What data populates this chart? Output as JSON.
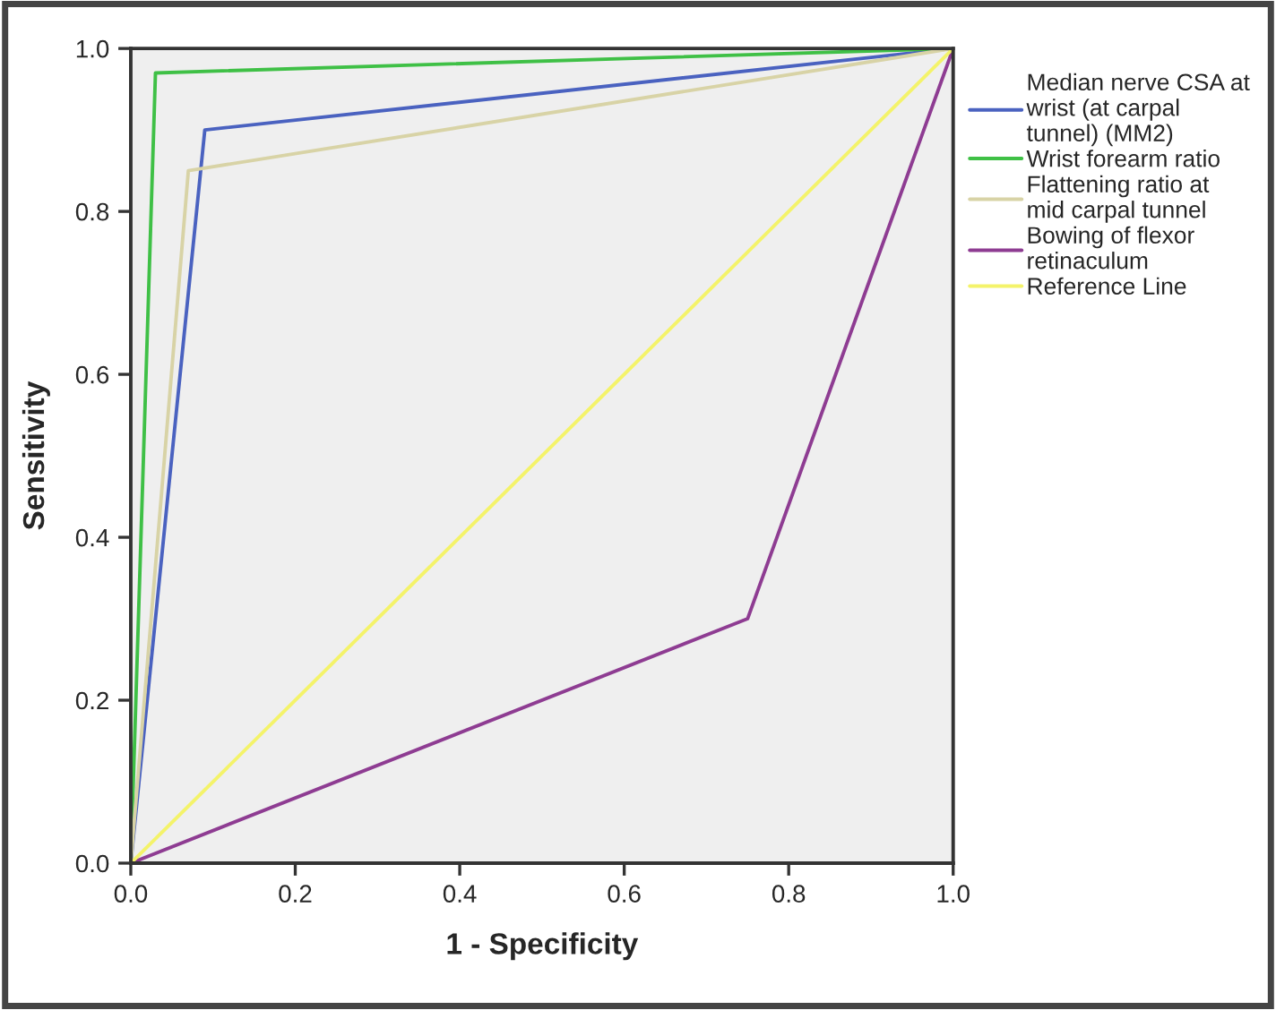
{
  "chart_data": {
    "type": "line",
    "xlabel": "1 - Specificity",
    "ylabel": "Sensitivity",
    "xlim": [
      0,
      1
    ],
    "ylim": [
      0,
      1
    ],
    "xticks": [
      {
        "value": 0,
        "label": "0.0"
      },
      0.2,
      0.4,
      0.6,
      0.8,
      {
        "value": 1,
        "label": "1.0"
      }
    ],
    "yticks": [
      {
        "value": 0,
        "label": "0.0"
      },
      0.2,
      0.4,
      0.6,
      0.8,
      {
        "value": 1,
        "label": "1.0"
      }
    ],
    "grid": false,
    "legend": "right",
    "marker": "none",
    "line_style": "solid",
    "series": [
      {
        "name": "Median nerve CSA at wrist (at carpal tunnel) (MM2)",
        "color": "#4a62c0",
        "x": [
          0,
          0.09,
          1
        ],
        "values": [
          0,
          0.9,
          1
        ]
      },
      {
        "name": "Wrist forearm ratio",
        "color": "#3fc046",
        "x": [
          0,
          0.03,
          1
        ],
        "values": [
          0,
          0.97,
          1
        ]
      },
      {
        "name": "Flattening ratio at mid carpal tunnel",
        "color": "#d8d3a6",
        "x": [
          0,
          0.07,
          1
        ],
        "values": [
          0,
          0.85,
          1
        ]
      },
      {
        "name": "Bowing of flexor retinaculum",
        "color": "#8e3c92",
        "x": [
          0,
          0.75,
          1
        ],
        "values": [
          0,
          0.3,
          1
        ]
      },
      {
        "name": "Reference Line",
        "color": "#f4f36a",
        "x": [
          0,
          1
        ],
        "values": [
          0,
          1
        ]
      }
    ]
  }
}
